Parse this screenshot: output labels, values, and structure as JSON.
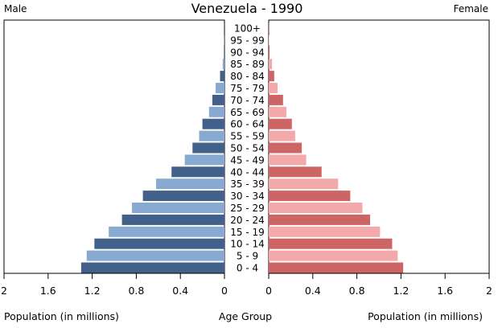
{
  "chart_data": {
    "type": "bar",
    "orientation": "horizontal-pyramid",
    "title": "Venezuela - 1990",
    "left_label": "Male",
    "right_label": "Female",
    "xlabel_left": "Population (in millions)",
    "xlabel_center": "Age Group",
    "xlabel_right": "Population (in millions)",
    "xlim": [
      0,
      2
    ],
    "x_ticks": [
      "0",
      "0.4",
      "0.8",
      "1.2",
      "1.6",
      "2"
    ],
    "x_tick_values": [
      0,
      0.4,
      0.8,
      1.2,
      1.6,
      2
    ],
    "grid": false,
    "categories": [
      "0 - 4",
      "5 - 9",
      "10 - 14",
      "15 - 19",
      "20 - 24",
      "25 - 29",
      "30 - 34",
      "35 - 39",
      "40 - 44",
      "45 - 49",
      "50 - 54",
      "55 - 59",
      "60 - 64",
      "65 - 69",
      "70 - 74",
      "75 - 79",
      "80 - 84",
      "85 - 89",
      "90 - 94",
      "95 - 99",
      "100+"
    ],
    "series": [
      {
        "name": "Male",
        "values": [
          1.3,
          1.25,
          1.18,
          1.05,
          0.93,
          0.84,
          0.74,
          0.62,
          0.48,
          0.36,
          0.29,
          0.23,
          0.2,
          0.14,
          0.11,
          0.08,
          0.04,
          0.016,
          0.005,
          0.002,
          0.001
        ]
      },
      {
        "name": "Female",
        "values": [
          1.22,
          1.17,
          1.12,
          1.01,
          0.92,
          0.85,
          0.74,
          0.63,
          0.48,
          0.34,
          0.3,
          0.24,
          0.21,
          0.16,
          0.13,
          0.08,
          0.05,
          0.03,
          0.008,
          0.004,
          0.002
        ]
      }
    ],
    "colors": {
      "male_dark": "#41618a",
      "male_light": "#88a9d0",
      "female_dark": "#cd6565",
      "female_light": "#f3a9a9"
    }
  }
}
